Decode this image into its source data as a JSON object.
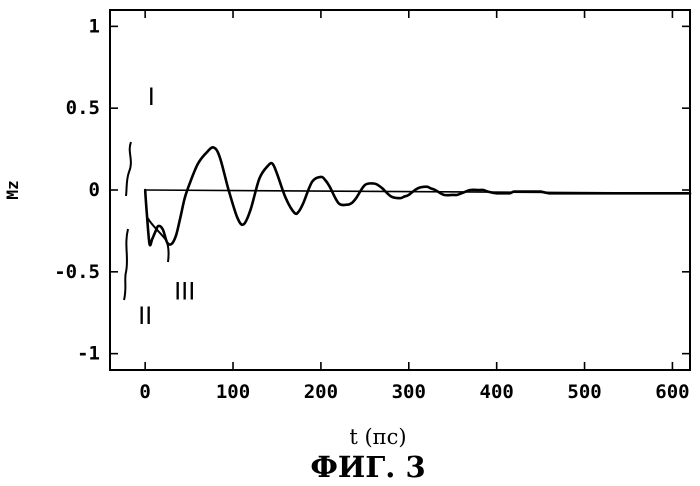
{
  "chart_data": {
    "type": "line",
    "xlabel": "t (пс)",
    "ylabel": "Mz",
    "figure_caption": "ФИГ. 3",
    "xlim": [
      -40,
      620
    ],
    "ylim": [
      -1.1,
      1.1
    ],
    "xticks": [
      0,
      100,
      200,
      300,
      400,
      500,
      600
    ],
    "xtick_labels": [
      "0",
      "100",
      "200",
      "300",
      "400",
      "500",
      "600"
    ],
    "yticks": [
      1,
      0.5,
      0,
      -0.5,
      -1
    ],
    "ytick_labels": [
      "1",
      "0.5",
      "0",
      "-0.5",
      "-1"
    ],
    "grid": false,
    "reference_line": {
      "x": [
        0,
        620
      ],
      "y": [
        0.0,
        -0.02
      ]
    },
    "series": [
      {
        "x": [
          0,
          2,
          5,
          8,
          12,
          15,
          20,
          25,
          30,
          35,
          40,
          45,
          50,
          60,
          70,
          78,
          85,
          95,
          105,
          112,
          120,
          130,
          140,
          145,
          150,
          160,
          170,
          175,
          180,
          190,
          200,
          205,
          210,
          220,
          230,
          235,
          240,
          250,
          260,
          265,
          270,
          280,
          290,
          295,
          300,
          310,
          320,
          325,
          330,
          340,
          350,
          355,
          360,
          370,
          380,
          385,
          390,
          400,
          410,
          415,
          420,
          430,
          440,
          445,
          450,
          460,
          470,
          475,
          480,
          490,
          500,
          520,
          540,
          560,
          580,
          600,
          620
        ],
        "y": [
          0.0,
          -0.15,
          -0.33,
          -0.3,
          -0.25,
          -0.22,
          -0.24,
          -0.32,
          -0.33,
          -0.28,
          -0.17,
          -0.05,
          0.03,
          0.16,
          0.23,
          0.26,
          0.2,
          0.0,
          -0.17,
          -0.21,
          -0.12,
          0.07,
          0.15,
          0.16,
          0.1,
          -0.05,
          -0.14,
          -0.13,
          -0.08,
          0.05,
          0.08,
          0.06,
          0.02,
          -0.08,
          -0.09,
          -0.08,
          -0.05,
          0.03,
          0.04,
          0.03,
          0.01,
          -0.04,
          -0.05,
          -0.04,
          -0.03,
          0.01,
          0.02,
          0.01,
          0.0,
          -0.03,
          -0.03,
          -0.03,
          -0.02,
          0.0,
          0.0,
          0.0,
          -0.01,
          -0.02,
          -0.02,
          -0.02,
          -0.01,
          -0.01,
          -0.01,
          -0.01,
          -0.01,
          -0.02,
          -0.02,
          -0.02,
          -0.02,
          -0.02,
          -0.02,
          -0.02,
          -0.02,
          -0.02,
          -0.02,
          -0.02,
          -0.02
        ]
      }
    ],
    "annotations": [
      {
        "text": "I",
        "x": 7,
        "y": 0.52
      },
      {
        "text": "II",
        "x": 0,
        "y": -0.82
      },
      {
        "text": "III",
        "x": 45,
        "y": -0.67
      }
    ]
  }
}
